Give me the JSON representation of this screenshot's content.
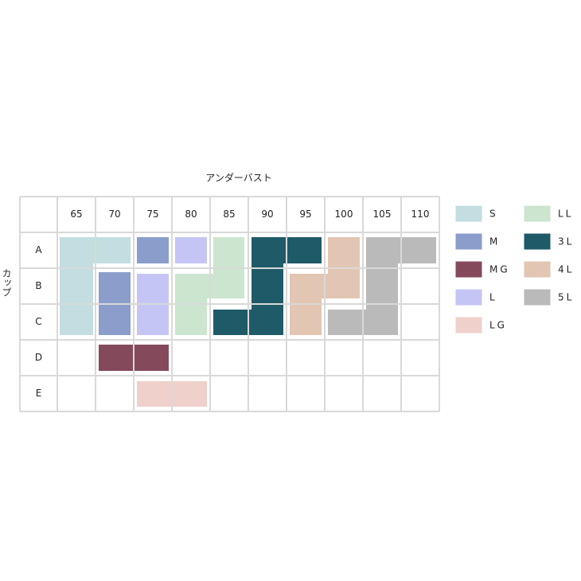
{
  "header": {
    "title": "アンダーバスト",
    "side_label": "カップ"
  },
  "table": {
    "columns": [
      "65",
      "70",
      "75",
      "80",
      "85",
      "90",
      "95",
      "100",
      "105",
      "110"
    ],
    "rows": [
      "A",
      "B",
      "C",
      "D",
      "E"
    ]
  },
  "legend": {
    "items": [
      {
        "label": "S",
        "color": "#c3dde0"
      },
      {
        "label": "M",
        "color": "#8b9dcb"
      },
      {
        "label": "MG",
        "color": "#844a5c"
      },
      {
        "label": "L",
        "color": "#c5c5f5"
      },
      {
        "label": "LG",
        "color": "#efd0ca"
      },
      {
        "label": "LL",
        "color": "#cce5cf"
      },
      {
        "label": "3L",
        "color": "#1f5a68"
      },
      {
        "label": "4L",
        "color": "#e2c5b2"
      },
      {
        "label": "5L",
        "color": "#bababa"
      }
    ]
  }
}
